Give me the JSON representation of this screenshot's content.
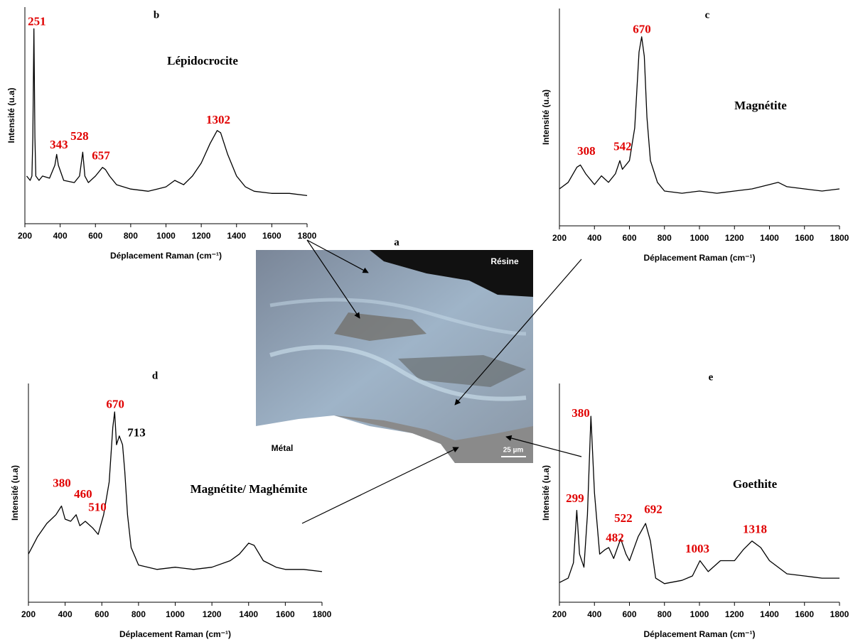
{
  "chart_data": [
    {
      "type": "line",
      "title": "b",
      "label": "Lépidocrocite",
      "xlabel": "Déplacement Raman (cm⁻¹)",
      "ylabel": "Intensité (u.a)",
      "x": [
        210,
        230,
        240,
        245,
        251,
        257,
        262,
        280,
        300,
        340,
        370,
        380,
        390,
        420,
        480,
        510,
        528,
        540,
        560,
        600,
        640,
        657,
        680,
        720,
        800,
        900,
        950,
        1000,
        1050,
        1100,
        1150,
        1200,
        1250,
        1290,
        1310,
        1350,
        1400,
        1450,
        1500,
        1600,
        1700,
        1800
      ],
      "series": [
        {
          "color": "#000000",
          "values": [
            22,
            20,
            22,
            40,
            90,
            40,
            22,
            20,
            22,
            21,
            27,
            32,
            27,
            20,
            19,
            22,
            33,
            22,
            19,
            22,
            26,
            25,
            22,
            18,
            16,
            15,
            16,
            17,
            20,
            18,
            22,
            28,
            37,
            43,
            42,
            32,
            22,
            17,
            15,
            14,
            14,
            13
          ]
        }
      ],
      "annotations": [
        {
          "text": "251",
          "x": 268,
          "y": 93,
          "color": "#e00000"
        },
        {
          "text": "343",
          "x": 393,
          "y": 36,
          "color": "#e00000"
        },
        {
          "text": "528",
          "x": 510,
          "y": 40,
          "color": "#e00000"
        },
        {
          "text": "657",
          "x": 631,
          "y": 31,
          "color": "#e00000"
        },
        {
          "text": "1302",
          "x": 1296,
          "y": 47.5,
          "color": "#e00000"
        }
      ],
      "xlim": [
        200,
        1800
      ],
      "ylim": [
        0,
        100
      ],
      "xticks": [
        200,
        400,
        600,
        800,
        1000,
        1200,
        1400,
        1600,
        1800
      ]
    },
    {
      "type": "line",
      "title": "c",
      "label": "Magnétite",
      "xlabel": "Déplacement Raman (cm⁻¹)",
      "ylabel": "Intensité (u.a)",
      "x": [
        200,
        250,
        300,
        320,
        350,
        400,
        440,
        480,
        520,
        545,
        560,
        600,
        630,
        655,
        670,
        685,
        700,
        720,
        760,
        800,
        900,
        1000,
        1100,
        1200,
        1300,
        1400,
        1450,
        1500,
        1600,
        1700,
        1800
      ],
      "series": [
        {
          "color": "#000000",
          "values": [
            17,
            20,
            27,
            28,
            24,
            19,
            23,
            20,
            24,
            30,
            26,
            30,
            45,
            80,
            87,
            78,
            50,
            30,
            20,
            16,
            15,
            16,
            15,
            16,
            17,
            19,
            20,
            18,
            17,
            16,
            17
          ]
        }
      ],
      "annotations": [
        {
          "text": "670",
          "x": 671,
          "y": 90,
          "color": "#e00000"
        },
        {
          "text": "308",
          "x": 354,
          "y": 34,
          "color": "#e00000"
        },
        {
          "text": "542",
          "x": 561,
          "y": 36,
          "color": "#e00000"
        }
      ],
      "xlim": [
        200,
        1800
      ],
      "ylim": [
        0,
        100
      ],
      "xticks": [
        200,
        400,
        600,
        800,
        1000,
        1200,
        1400,
        1600,
        1800
      ]
    },
    {
      "type": "line",
      "title": "d",
      "label": "Magnétite/ Maghémite",
      "xlabel": "Déplacement Raman (cm⁻¹)",
      "ylabel": "Intensité (u.a)",
      "x": [
        200,
        250,
        300,
        350,
        380,
        400,
        430,
        460,
        480,
        510,
        550,
        580,
        610,
        640,
        660,
        670,
        680,
        695,
        713,
        725,
        740,
        760,
        800,
        900,
        1000,
        1100,
        1200,
        1300,
        1350,
        1400,
        1430,
        1480,
        1550,
        1600,
        1700,
        1800
      ],
      "series": [
        {
          "color": "#000000",
          "values": [
            22,
            30,
            36,
            40,
            44,
            38,
            37,
            40,
            35,
            37,
            34,
            31,
            40,
            55,
            80,
            87,
            72,
            76,
            72,
            60,
            40,
            25,
            17,
            15,
            16,
            15,
            16,
            19,
            22,
            27,
            26,
            19,
            16,
            15,
            15,
            14
          ]
        }
      ],
      "annotations": [
        {
          "text": "670",
          "x": 673,
          "y": 90,
          "color": "#e00000"
        },
        {
          "text": "713",
          "x": 789,
          "y": 77,
          "color": "#000000"
        },
        {
          "text": "380",
          "x": 382,
          "y": 54,
          "color": "#e00000"
        },
        {
          "text": "460",
          "x": 498,
          "y": 49,
          "color": "#e00000"
        },
        {
          "text": "510",
          "x": 576,
          "y": 43,
          "color": "#e00000"
        }
      ],
      "xlim": [
        200,
        1800
      ],
      "ylim": [
        0,
        100
      ],
      "xticks": [
        200,
        400,
        600,
        800,
        1000,
        1200,
        1400,
        1600,
        1800
      ]
    },
    {
      "type": "line",
      "title": "e",
      "label": "Goethite",
      "xlabel": "Déplacement Raman (cm⁻¹)",
      "ylabel": "Intensité (u.a)",
      "x": [
        200,
        250,
        280,
        299,
        315,
        340,
        360,
        380,
        400,
        430,
        460,
        482,
        510,
        550,
        580,
        600,
        650,
        692,
        720,
        750,
        800,
        900,
        960,
        1003,
        1050,
        1120,
        1200,
        1250,
        1300,
        1350,
        1400,
        1500,
        1600,
        1700,
        1800
      ],
      "series": [
        {
          "color": "#000000",
          "values": [
            9,
            11,
            18,
            42,
            22,
            16,
            40,
            85,
            50,
            22,
            24,
            25,
            20,
            29,
            22,
            19,
            30,
            36,
            28,
            11,
            8.5,
            10,
            12,
            19,
            14,
            19,
            19,
            24,
            28,
            25,
            19,
            13,
            12,
            11,
            11
          ]
        }
      ],
      "annotations": [
        {
          "text": "380",
          "x": 322,
          "y": 86,
          "color": "#e00000"
        },
        {
          "text": "299",
          "x": 289,
          "y": 47,
          "color": "#e00000"
        },
        {
          "text": "522",
          "x": 565,
          "y": 38,
          "color": "#e00000"
        },
        {
          "text": "692",
          "x": 736,
          "y": 42,
          "color": "#e00000"
        },
        {
          "text": "482",
          "x": 517,
          "y": 29,
          "color": "#e00000"
        },
        {
          "text": "1003",
          "x": 988,
          "y": 24,
          "color": "#e00000"
        },
        {
          "text": "1318",
          "x": 1317,
          "y": 33,
          "color": "#e00000"
        }
      ],
      "xlim": [
        200,
        1800
      ],
      "ylim": [
        0,
        100
      ],
      "xticks": [
        200,
        400,
        600,
        800,
        1000,
        1200,
        1400,
        1600,
        1800
      ]
    }
  ],
  "micrograph": {
    "title": "a",
    "resin": "Résine",
    "metal": "Métal",
    "scale": "25 µm"
  }
}
